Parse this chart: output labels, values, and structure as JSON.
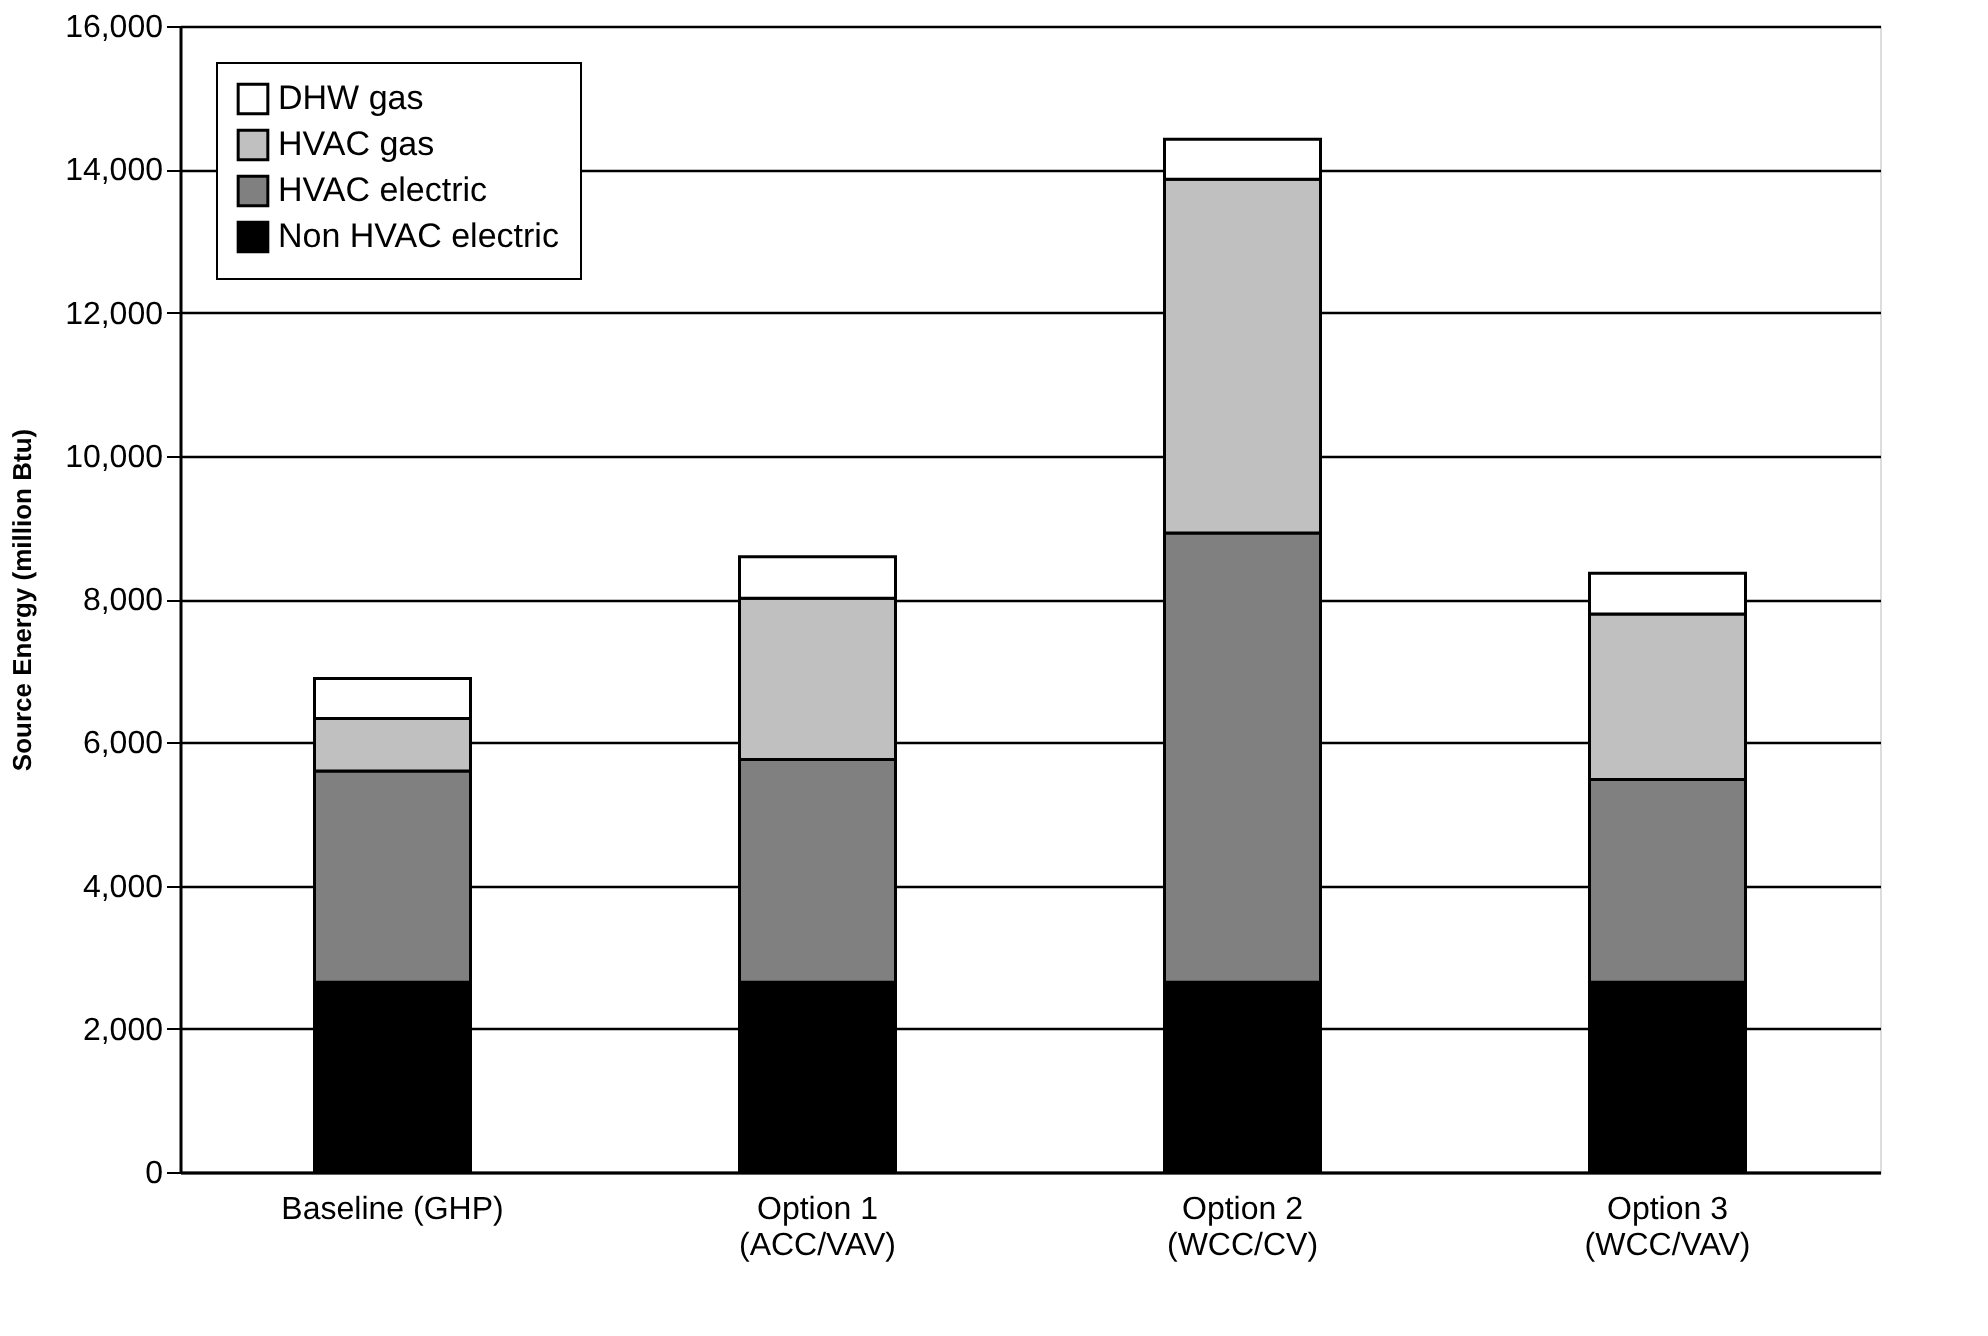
{
  "chart_data": {
    "type": "bar",
    "stacked": true,
    "ylabel": "Source Energy (million Btu)",
    "categories": [
      "Baseline (GHP)",
      "Option 1\n(ACC/VAV)",
      "Option 2\n(WCC/CV)",
      "Option 3\n(WCC/VAV)"
    ],
    "series": [
      {
        "name": "Non HVAC electric",
        "color": "#000000",
        "values": [
          2650,
          2650,
          2650,
          2650
        ]
      },
      {
        "name": "HVAC electric",
        "color": "#808080",
        "values": [
          2950,
          3110,
          6270,
          2830
        ]
      },
      {
        "name": "HVAC gas",
        "color": "#c0c0c0",
        "values": [
          730,
          2250,
          4940,
          2310
        ]
      },
      {
        "name": "DHW gas",
        "color": "#ffffff",
        "values": [
          560,
          580,
          560,
          570
        ]
      }
    ],
    "ylim": [
      0,
      16000
    ],
    "yticks": [
      0,
      {
        "value": 2000,
        "label": "2,000"
      },
      {
        "value": 4000,
        "label": "4,000"
      },
      {
        "value": 6000,
        "label": "6,000"
      },
      {
        "value": 8000,
        "label": "8,000"
      },
      {
        "value": 10000,
        "label": "10,000"
      },
      {
        "value": 12000,
        "label": "12,000"
      },
      {
        "value": 14000,
        "label": "14,000"
      },
      {
        "value": 16000,
        "label": "16,000"
      }
    ],
    "grid": "y",
    "legend": "top left"
  }
}
